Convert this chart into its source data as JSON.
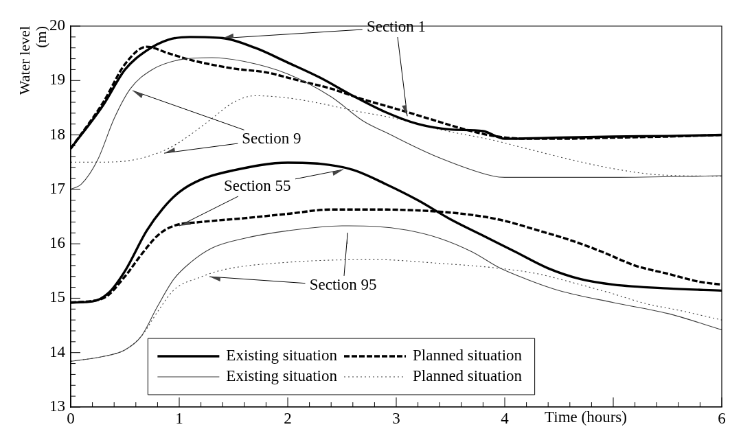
{
  "chart_data": {
    "type": "line",
    "xlabel": "Time (hours)",
    "ylabel": "Water level (m)",
    "xlim": [
      0,
      6
    ],
    "ylim": [
      13,
      20
    ],
    "xticks": [
      0,
      {
        "value": 0.2,
        "label": null
      },
      {
        "value": 0.4,
        "label": null
      },
      {
        "value": 0.6,
        "label": null
      },
      {
        "value": 0.8,
        "label": null
      },
      1,
      {
        "value": 1.2,
        "label": null
      },
      {
        "value": 1.4,
        "label": null
      },
      {
        "value": 1.6,
        "label": null
      },
      {
        "value": 1.8,
        "label": null
      },
      2,
      {
        "value": 2.2,
        "label": null
      },
      {
        "value": 2.4,
        "label": null
      },
      {
        "value": 2.6,
        "label": null
      },
      {
        "value": 2.8,
        "label": null
      },
      3,
      {
        "value": 3.2,
        "label": null
      },
      {
        "value": 3.4,
        "label": null
      },
      {
        "value": 3.6,
        "label": null
      },
      {
        "value": 3.8,
        "label": null
      },
      4,
      {
        "value": 4.2,
        "label": null
      },
      {
        "value": 4.4,
        "label": null
      },
      {
        "value": 4.6,
        "label": null
      },
      {
        "value": 4.8,
        "label": null
      },
      {
        "value": 5,
        "label": null
      },
      {
        "value": 5.2,
        "label": null
      },
      {
        "value": 5.4,
        "label": null
      },
      {
        "value": 5.6,
        "label": null
      },
      {
        "value": 5.8,
        "label": null
      },
      6
    ],
    "yticks": [
      13,
      {
        "value": 13.2,
        "label": null
      },
      {
        "value": 13.4,
        "label": null
      },
      {
        "value": 13.6,
        "label": null
      },
      {
        "value": 13.8,
        "label": null
      },
      14,
      {
        "value": 14.2,
        "label": null
      },
      {
        "value": 14.4,
        "label": null
      },
      {
        "value": 14.6,
        "label": null
      },
      {
        "value": 14.8,
        "label": null
      },
      15,
      {
        "value": 15.2,
        "label": null
      },
      {
        "value": 15.4,
        "label": null
      },
      {
        "value": 15.6,
        "label": null
      },
      {
        "value": 15.8,
        "label": null
      },
      16,
      {
        "value": 16.2,
        "label": null
      },
      {
        "value": 16.4,
        "label": null
      },
      {
        "value": 16.6,
        "label": null
      },
      {
        "value": 16.8,
        "label": null
      },
      17,
      {
        "value": 17.2,
        "label": null
      },
      {
        "value": 17.4,
        "label": null
      },
      {
        "value": 17.6,
        "label": null
      },
      {
        "value": 17.8,
        "label": null
      },
      18,
      {
        "value": 18.2,
        "label": null
      },
      {
        "value": 18.4,
        "label": null
      },
      {
        "value": 18.6,
        "label": null
      },
      {
        "value": 18.8,
        "label": null
      },
      19,
      {
        "value": 19.2,
        "label": null
      },
      {
        "value": 19.4,
        "label": null
      },
      {
        "value": 19.6,
        "label": null
      },
      {
        "value": 19.8,
        "label": null
      },
      20
    ],
    "grid": false,
    "legend": "bottom",
    "marker": "none",
    "series": [
      {
        "name": "Existing situation",
        "color": "#000000",
        "line_style": "solid",
        "x": [
          0,
          0.3,
          0.5,
          0.7,
          0.9,
          1.1,
          1.4,
          1.7,
          2.0,
          2.3,
          2.6,
          2.9,
          3.2,
          3.5,
          3.8,
          4.0,
          4.5,
          5.0,
          5.5,
          6.0
        ],
        "values": [
          17.75,
          18.55,
          19.2,
          19.55,
          19.75,
          19.8,
          19.78,
          19.6,
          19.33,
          19.05,
          18.72,
          18.42,
          18.2,
          18.1,
          18.07,
          17.93,
          17.95,
          17.97,
          17.98,
          18.0
        ]
      },
      {
        "name": "Existing situation",
        "color": "#3a3a3a",
        "line_style": "solid",
        "x": [
          0,
          0.1,
          0.25,
          0.4,
          0.55,
          0.75,
          1.0,
          1.3,
          1.6,
          2.0,
          2.4,
          2.7,
          2.9,
          3.35,
          3.9,
          4.0,
          5.0,
          6.0
        ],
        "values": [
          17.0,
          17.1,
          17.55,
          18.3,
          18.85,
          19.2,
          19.38,
          19.42,
          19.35,
          19.12,
          18.7,
          18.25,
          18.05,
          17.62,
          17.24,
          17.22,
          17.22,
          17.25
        ]
      },
      {
        "name": "Planned situation",
        "color": "#000000",
        "line_style": "dashed",
        "x": [
          0,
          0.3,
          0.5,
          0.7,
          0.9,
          1.1,
          1.5,
          1.8,
          2.1,
          2.4,
          2.7,
          3.0,
          3.3,
          3.6,
          3.9,
          4.2,
          4.5,
          5.0,
          5.5,
          6.0
        ],
        "values": [
          17.75,
          18.6,
          19.3,
          19.62,
          19.5,
          19.38,
          19.22,
          19.15,
          19.0,
          18.85,
          18.65,
          18.48,
          18.3,
          18.12,
          17.98,
          17.93,
          17.93,
          17.95,
          17.97,
          18.0
        ]
      },
      {
        "name": "Planned situation",
        "color": "#3a3a3a",
        "line_style": "dotted",
        "x": [
          0,
          0.3,
          0.6,
          0.9,
          1.1,
          1.3,
          1.5,
          1.7,
          2.0,
          2.3,
          2.6,
          3.0,
          3.4,
          3.9,
          4.2,
          4.6,
          5.0,
          5.4,
          6.0
        ],
        "values": [
          17.5,
          17.5,
          17.55,
          17.75,
          18.0,
          18.3,
          18.6,
          18.72,
          18.68,
          18.58,
          18.45,
          18.3,
          18.1,
          17.9,
          17.75,
          17.55,
          17.38,
          17.27,
          17.24
        ]
      },
      {
        "color": "#000000",
        "line_style": "solid",
        "x": [
          0,
          0.2,
          0.35,
          0.5,
          0.7,
          0.85,
          1.0,
          1.2,
          1.5,
          2.0,
          2.3,
          2.6,
          2.9,
          3.2,
          3.5,
          3.8,
          4.1,
          4.4,
          4.7,
          5.0,
          5.5,
          6.0
        ],
        "values": [
          14.92,
          14.94,
          15.1,
          15.5,
          16.24,
          16.65,
          16.95,
          17.18,
          17.35,
          17.49,
          17.47,
          17.36,
          17.1,
          16.8,
          16.45,
          16.15,
          15.85,
          15.55,
          15.35,
          15.25,
          15.18,
          15.14
        ]
      },
      {
        "color": "#000000",
        "line_style": "dashed",
        "x": [
          0,
          0.3,
          0.5,
          0.65,
          0.8,
          0.95,
          1.2,
          1.6,
          2.0,
          2.4,
          2.8,
          3.4,
          3.8,
          4.0,
          4.3,
          4.6,
          4.9,
          5.2,
          5.5,
          5.8,
          6.0
        ],
        "values": [
          14.92,
          15.0,
          15.4,
          15.8,
          16.15,
          16.33,
          16.4,
          16.47,
          16.55,
          16.63,
          16.63,
          16.59,
          16.5,
          16.42,
          16.25,
          16.07,
          15.85,
          15.6,
          15.45,
          15.3,
          15.25
        ]
      },
      {
        "color": "#3a3a3a",
        "line_style": "solid",
        "x": [
          0,
          0.3,
          0.5,
          0.65,
          0.8,
          0.95,
          1.1,
          1.3,
          1.6,
          2.0,
          2.5,
          2.8,
          3.1,
          3.4,
          3.7,
          3.95,
          4.2,
          4.5,
          5.0,
          5.5,
          6.0
        ],
        "values": [
          13.84,
          13.93,
          14.05,
          14.3,
          14.85,
          15.35,
          15.65,
          15.92,
          16.1,
          16.24,
          16.33,
          16.32,
          16.25,
          16.1,
          15.85,
          15.56,
          15.35,
          15.14,
          14.92,
          14.72,
          14.42
        ]
      },
      {
        "color": "#3a3a3a",
        "line_style": "dotted",
        "x": [
          0,
          0.3,
          0.5,
          0.65,
          0.8,
          0.95,
          1.2,
          1.4,
          2.0,
          2.8,
          3.4,
          3.9,
          4.3,
          4.6,
          5.0,
          5.3,
          5.6,
          6.0
        ],
        "values": [
          13.84,
          13.93,
          14.05,
          14.3,
          14.75,
          15.15,
          15.39,
          15.52,
          15.66,
          15.71,
          15.64,
          15.56,
          15.45,
          15.3,
          15.08,
          14.9,
          14.78,
          14.6
        ]
      }
    ],
    "annotations": [
      {
        "text": "Section 1",
        "x": 1.4,
        "y": 19.78
      },
      {
        "text": "Section 9",
        "x": 0.57,
        "y": 18.82
      },
      {
        "text": "Section 55",
        "x": 2.51,
        "y": 17.36
      },
      {
        "text": "Section 95",
        "x": 1.28,
        "y": 15.4
      }
    ]
  }
}
